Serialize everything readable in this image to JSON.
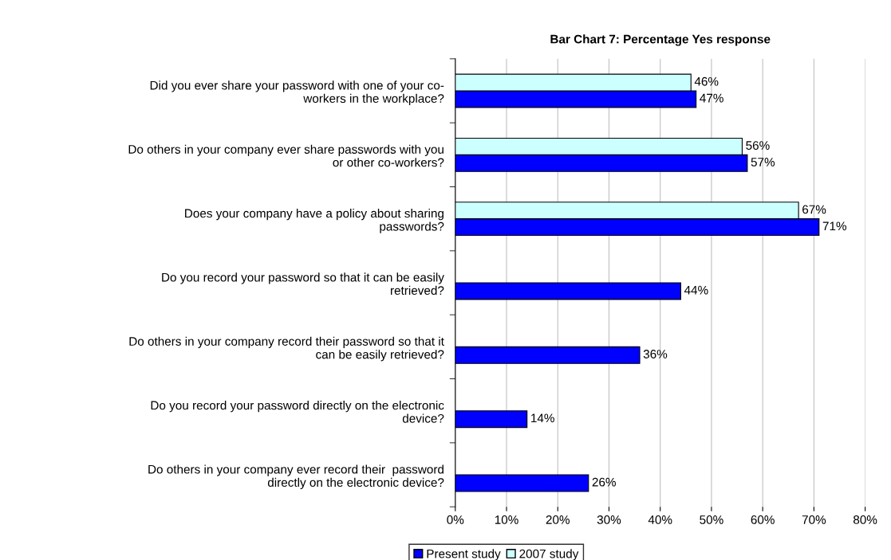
{
  "chart_data": {
    "type": "bar",
    "orientation": "horizontal",
    "title": "Bar Chart 7: Percentage Yes response",
    "categories": [
      "Did you ever share your password with one of your co-\nworkers in the workplace?",
      "Do others in your company ever share passwords with you\nor other co-workers?",
      "Does your company have a policy about sharing\npasswords?",
      "Do you record your password so that it can be easily\nretrieved?",
      "Do others in your company record their password so that it\ncan be easily retrieved?",
      "Do you record your password directly on the electronic\ndevice?",
      "Do others in your company ever record their  password\ndirectly on the electronic device?"
    ],
    "series": [
      {
        "name": "Present study",
        "color": "#0000ff",
        "values": [
          47,
          57,
          71,
          44,
          36,
          14,
          26
        ],
        "value_labels": [
          "47%",
          "57%",
          "71%",
          "44%",
          "36%",
          "14%",
          "26%"
        ]
      },
      {
        "name": "2007 study",
        "color": "#ccffff",
        "values": [
          46,
          56,
          67,
          null,
          null,
          null,
          null
        ],
        "value_labels": [
          "46%",
          "56%",
          "67%",
          null,
          null,
          null,
          null
        ]
      }
    ],
    "xlim": [
      0,
      80
    ],
    "xticks": [
      {
        "value": 0,
        "label": "0%"
      },
      {
        "value": 10,
        "label": "10%"
      },
      {
        "value": 20,
        "label": "20%"
      },
      {
        "value": 30,
        "label": "30%"
      },
      {
        "value": 40,
        "label": "40%"
      },
      {
        "value": 50,
        "label": "50%"
      },
      {
        "value": 60,
        "label": "60%"
      },
      {
        "value": 70,
        "label": "70%"
      },
      {
        "value": 80,
        "label": "80%"
      }
    ],
    "grid": "x",
    "legend": "bottom"
  }
}
